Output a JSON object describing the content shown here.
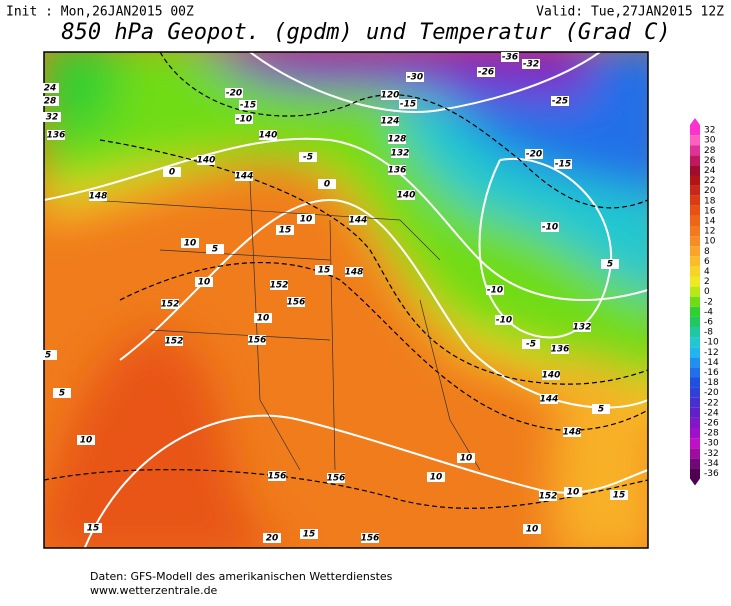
{
  "header": {
    "init": "Init : Mon,26JAN2015 00Z",
    "valid": "Valid: Tue,27JAN2015 12Z",
    "title": "850 hPa Geopot. (gpdm) und Temperatur (Grad C)"
  },
  "contour_labels": [
    -36,
    -32,
    -26,
    -30,
    -25,
    -20,
    -15,
    -10,
    120,
    -15,
    124,
    128,
    132,
    136,
    140,
    140,
    140,
    144,
    148,
    -5,
    0,
    0,
    144,
    148,
    152,
    152,
    156,
    156,
    10,
    15,
    15,
    10,
    10,
    5,
    10,
    -20,
    -15,
    -10,
    -10,
    -10,
    -5,
    132,
    136,
    140,
    144,
    5,
    148,
    152,
    10,
    15,
    10,
    10,
    10,
    156,
    156,
    156,
    15,
    20,
    15,
    10,
    5,
    5,
    152,
    32,
    136,
    24,
    28,
    5
  ],
  "colorbar": {
    "ticks": [
      32,
      30,
      28,
      26,
      24,
      22,
      20,
      18,
      16,
      14,
      12,
      10,
      8,
      6,
      4,
      2,
      0,
      -2,
      -4,
      -6,
      -8,
      -10,
      -12,
      -14,
      -16,
      -18,
      -20,
      -22,
      -24,
      -26,
      -28,
      -30,
      -32,
      -34,
      -36
    ],
    "colors": [
      "#ff30d0",
      "#ff60c0",
      "#e0309a",
      "#c01860",
      "#a00c30",
      "#b41414",
      "#c82818",
      "#dc3c14",
      "#e85014",
      "#f06418",
      "#f47820",
      "#f88c24",
      "#fca428",
      "#fcbc28",
      "#f8d428",
      "#f0e820",
      "#b8e818",
      "#70dc18",
      "#30d030",
      "#20c860",
      "#20c8a0",
      "#20c8d0",
      "#20b4f0",
      "#2090f0",
      "#2070e8",
      "#2050e0",
      "#3040d8",
      "#4830d0",
      "#6020c8",
      "#8018c8",
      "#a010c8",
      "#c010c8",
      "#a00ca0",
      "#700878",
      "#500050"
    ]
  },
  "footer": {
    "source": "Daten: GFS-Modell des amerikanischen Wetterdienstes",
    "url": "www.wetterzentrale.de"
  }
}
